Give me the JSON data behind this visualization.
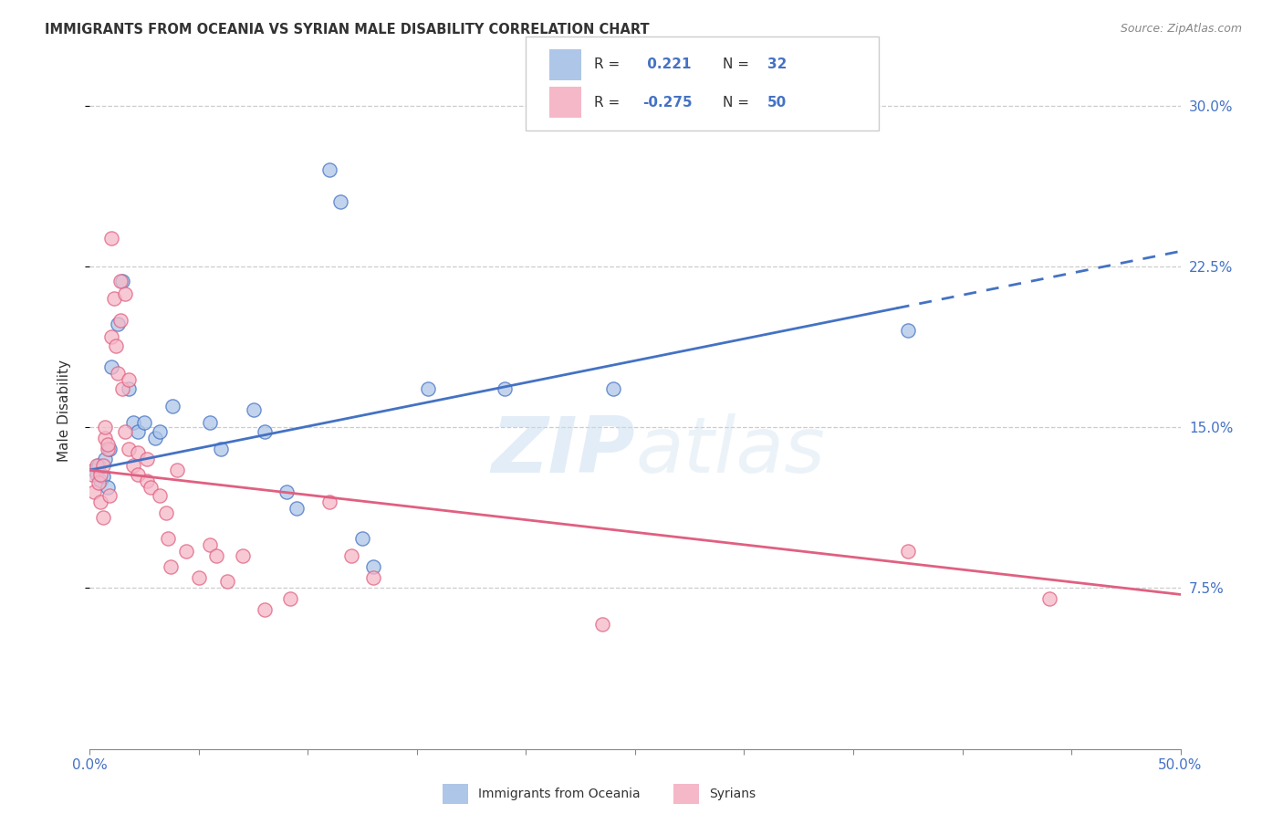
{
  "title": "IMMIGRANTS FROM OCEANIA VS SYRIAN MALE DISABILITY CORRELATION CHART",
  "source": "Source: ZipAtlas.com",
  "ylabel": "Male Disability",
  "legend_label1": "Immigrants from Oceania",
  "legend_label2": "Syrians",
  "xmin": 0.0,
  "xmax": 0.5,
  "ymin": 0.0,
  "ymax": 0.315,
  "yticks": [
    0.075,
    0.15,
    0.225,
    0.3
  ],
  "ytick_labels": [
    "7.5%",
    "15.0%",
    "22.5%",
    "30.0%"
  ],
  "color_blue": "#aec6e8",
  "color_pink": "#f5b8c8",
  "line_blue": "#4472c4",
  "line_pink": "#e06080",
  "watermark_zip": "ZIP",
  "watermark_atlas": "atlas",
  "blue_dots": [
    [
      0.002,
      0.13
    ],
    [
      0.003,
      0.128
    ],
    [
      0.004,
      0.132
    ],
    [
      0.005,
      0.125
    ],
    [
      0.006,
      0.127
    ],
    [
      0.007,
      0.135
    ],
    [
      0.008,
      0.122
    ],
    [
      0.009,
      0.14
    ],
    [
      0.01,
      0.178
    ],
    [
      0.013,
      0.198
    ],
    [
      0.015,
      0.218
    ],
    [
      0.018,
      0.168
    ],
    [
      0.02,
      0.152
    ],
    [
      0.022,
      0.148
    ],
    [
      0.025,
      0.152
    ],
    [
      0.03,
      0.145
    ],
    [
      0.032,
      0.148
    ],
    [
      0.038,
      0.16
    ],
    [
      0.055,
      0.152
    ],
    [
      0.06,
      0.14
    ],
    [
      0.075,
      0.158
    ],
    [
      0.08,
      0.148
    ],
    [
      0.09,
      0.12
    ],
    [
      0.095,
      0.112
    ],
    [
      0.11,
      0.27
    ],
    [
      0.115,
      0.255
    ],
    [
      0.125,
      0.098
    ],
    [
      0.13,
      0.085
    ],
    [
      0.155,
      0.168
    ],
    [
      0.19,
      0.168
    ],
    [
      0.24,
      0.168
    ],
    [
      0.375,
      0.195
    ]
  ],
  "pink_dots": [
    [
      0.001,
      0.128
    ],
    [
      0.002,
      0.12
    ],
    [
      0.003,
      0.132
    ],
    [
      0.004,
      0.124
    ],
    [
      0.005,
      0.115
    ],
    [
      0.005,
      0.128
    ],
    [
      0.006,
      0.108
    ],
    [
      0.006,
      0.132
    ],
    [
      0.007,
      0.145
    ],
    [
      0.007,
      0.15
    ],
    [
      0.008,
      0.14
    ],
    [
      0.008,
      0.142
    ],
    [
      0.009,
      0.118
    ],
    [
      0.01,
      0.238
    ],
    [
      0.01,
      0.192
    ],
    [
      0.011,
      0.21
    ],
    [
      0.012,
      0.188
    ],
    [
      0.013,
      0.175
    ],
    [
      0.014,
      0.218
    ],
    [
      0.014,
      0.2
    ],
    [
      0.015,
      0.168
    ],
    [
      0.016,
      0.212
    ],
    [
      0.016,
      0.148
    ],
    [
      0.018,
      0.172
    ],
    [
      0.018,
      0.14
    ],
    [
      0.02,
      0.132
    ],
    [
      0.022,
      0.138
    ],
    [
      0.022,
      0.128
    ],
    [
      0.026,
      0.135
    ],
    [
      0.026,
      0.125
    ],
    [
      0.028,
      0.122
    ],
    [
      0.032,
      0.118
    ],
    [
      0.035,
      0.11
    ],
    [
      0.036,
      0.098
    ],
    [
      0.037,
      0.085
    ],
    [
      0.04,
      0.13
    ],
    [
      0.044,
      0.092
    ],
    [
      0.05,
      0.08
    ],
    [
      0.055,
      0.095
    ],
    [
      0.058,
      0.09
    ],
    [
      0.063,
      0.078
    ],
    [
      0.07,
      0.09
    ],
    [
      0.08,
      0.065
    ],
    [
      0.092,
      0.07
    ],
    [
      0.11,
      0.115
    ],
    [
      0.12,
      0.09
    ],
    [
      0.13,
      0.08
    ],
    [
      0.235,
      0.058
    ],
    [
      0.375,
      0.092
    ],
    [
      0.44,
      0.07
    ]
  ]
}
